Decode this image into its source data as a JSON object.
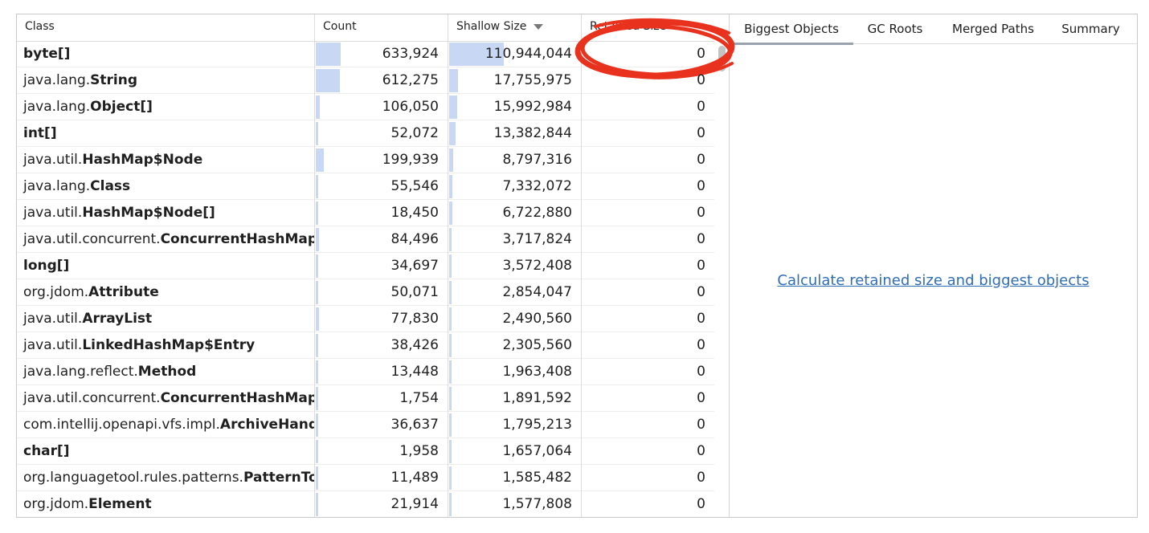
{
  "table": {
    "columns": {
      "class": "Class",
      "count": "Count",
      "shallow": "Shallow Size",
      "retained": "Retained Size"
    },
    "sort_icon": "chevron-down-icon",
    "rows": [
      {
        "pkg": "",
        "cls": "byte[]",
        "count": "633,924",
        "shallow": "110,944,044",
        "retained": "0",
        "count_share": 1.0,
        "shallow_share": 1.0
      },
      {
        "pkg": "java.lang.",
        "cls": "String",
        "count": "612,275",
        "shallow": "17,755,975",
        "retained": "0",
        "count_share": 0.966,
        "shallow_share": 0.16
      },
      {
        "pkg": "java.lang.",
        "cls": "Object[]",
        "count": "106,050",
        "shallow": "15,992,984",
        "retained": "0",
        "count_share": 0.167,
        "shallow_share": 0.144
      },
      {
        "pkg": "",
        "cls": "int[]",
        "count": "52,072",
        "shallow": "13,382,844",
        "retained": "0",
        "count_share": 0.082,
        "shallow_share": 0.121
      },
      {
        "pkg": "java.util.",
        "cls": "HashMap$Node",
        "count": "199,939",
        "shallow": "8,797,316",
        "retained": "0",
        "count_share": 0.315,
        "shallow_share": 0.079
      },
      {
        "pkg": "java.lang.",
        "cls": "Class",
        "count": "55,546",
        "shallow": "7,332,072",
        "retained": "0",
        "count_share": 0.088,
        "shallow_share": 0.066
      },
      {
        "pkg": "java.util.",
        "cls": "HashMap$Node[]",
        "count": "18,450",
        "shallow": "6,722,880",
        "retained": "0",
        "count_share": 0.029,
        "shallow_share": 0.061
      },
      {
        "pkg": "java.util.concurrent.",
        "cls": "ConcurrentHashMap",
        "count": "84,496",
        "shallow": "3,717,824",
        "retained": "0",
        "count_share": 0.133,
        "shallow_share": 0.034
      },
      {
        "pkg": "",
        "cls": "long[]",
        "count": "34,697",
        "shallow": "3,572,408",
        "retained": "0",
        "count_share": 0.055,
        "shallow_share": 0.032
      },
      {
        "pkg": "org.jdom.",
        "cls": "Attribute",
        "count": "50,071",
        "shallow": "2,854,047",
        "retained": "0",
        "count_share": 0.079,
        "shallow_share": 0.026
      },
      {
        "pkg": "java.util.",
        "cls": "ArrayList",
        "count": "77,830",
        "shallow": "2,490,560",
        "retained": "0",
        "count_share": 0.123,
        "shallow_share": 0.022
      },
      {
        "pkg": "java.util.",
        "cls": "LinkedHashMap$Entry",
        "count": "38,426",
        "shallow": "2,305,560",
        "retained": "0",
        "count_share": 0.061,
        "shallow_share": 0.021
      },
      {
        "pkg": "java.lang.reflect.",
        "cls": "Method",
        "count": "13,448",
        "shallow": "1,963,408",
        "retained": "0",
        "count_share": 0.021,
        "shallow_share": 0.018
      },
      {
        "pkg": "java.util.concurrent.",
        "cls": "ConcurrentHashMap",
        "count": "1,754",
        "shallow": "1,891,592",
        "retained": "0",
        "count_share": 0.003,
        "shallow_share": 0.017
      },
      {
        "pkg": "com.intellij.openapi.vfs.impl.",
        "cls": "ArchiveHand",
        "count": "36,637",
        "shallow": "1,795,213",
        "retained": "0",
        "count_share": 0.058,
        "shallow_share": 0.016
      },
      {
        "pkg": "",
        "cls": "char[]",
        "count": "1,958",
        "shallow": "1,657,064",
        "retained": "0",
        "count_share": 0.003,
        "shallow_share": 0.015
      },
      {
        "pkg": "org.languagetool.rules.patterns.",
        "cls": "PatternTo",
        "count": "11,489",
        "shallow": "1,585,482",
        "retained": "0",
        "count_share": 0.018,
        "shallow_share": 0.014
      },
      {
        "pkg": "org.jdom.",
        "cls": "Element",
        "count": "21,914",
        "shallow": "1,577,808",
        "retained": "0",
        "count_share": 0.035,
        "shallow_share": 0.014
      }
    ]
  },
  "panel": {
    "tabs": [
      {
        "label": "Biggest Objects",
        "active": true
      },
      {
        "label": "GC Roots",
        "active": false
      },
      {
        "label": "Merged Paths",
        "active": false
      },
      {
        "label": "Summary",
        "active": false
      }
    ],
    "action_link": "Calculate retained size and biggest objects"
  },
  "colors": {
    "bar": "#c8d7f3",
    "link": "#2f6db5",
    "annotation": "#e8321e"
  }
}
